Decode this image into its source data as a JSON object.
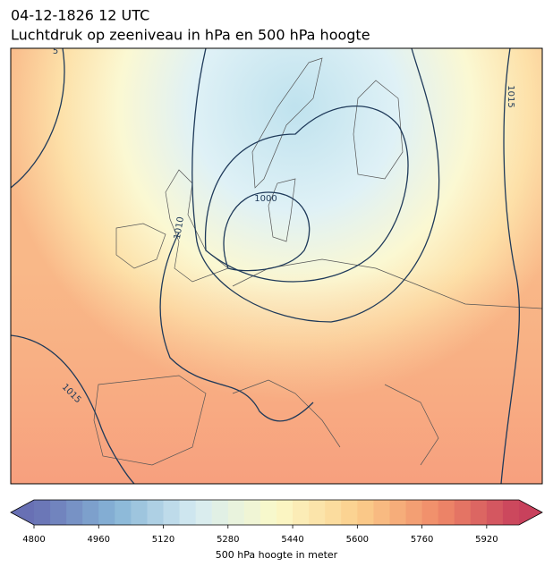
{
  "map": {
    "title": "04-12-1826 12 UTC",
    "subtitle": "Luchtdruk op zeeniveau in hPa en 500 hPa hoogte",
    "contour_labels": [
      "5",
      "1000",
      "1010",
      "1015",
      "1015"
    ],
    "colorbar": {
      "label": "500 hPa hoogte in meter",
      "lim": [
        4800,
        6000
      ],
      "step": 40,
      "ticks": [
        4800,
        4960,
        5120,
        5280,
        5440,
        5600,
        5760,
        5920
      ],
      "colors": [
        "#6870b4",
        "#86b4d6",
        "#d6ecf2",
        "#fbf9c8",
        "#fbcf8c",
        "#f08a68",
        "#c8415c"
      ]
    }
  }
}
